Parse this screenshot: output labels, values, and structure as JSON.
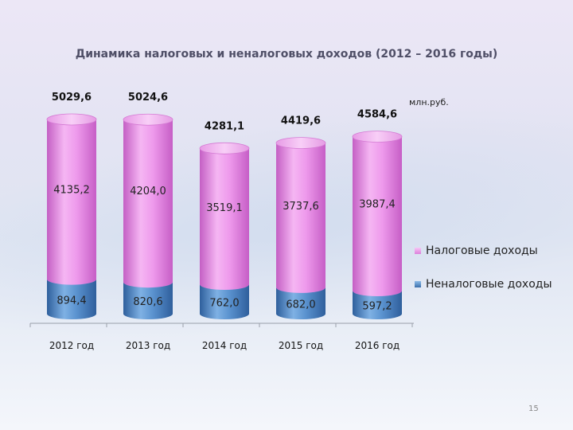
{
  "title": "Динамика налоговых и неналоговых  доходов  (2012 – 2016 годы)",
  "unit": "млн.руб.",
  "page_number": "15",
  "colors": {
    "tax": "#ea8ee8",
    "nontax": "#4f86c6"
  },
  "chart_data": {
    "type": "bar",
    "stacked": true,
    "categories": [
      "2012 год",
      "2013 год",
      "2014 год",
      "2015 год",
      "2016 год"
    ],
    "series": [
      {
        "name": "Неналоговые доходы",
        "values": [
          894.4,
          820.6,
          762.0,
          682.0,
          597.2
        ],
        "labels": [
          "894,4",
          "820,6",
          "762,0",
          "682,0",
          "597,2"
        ]
      },
      {
        "name": "Налоговые доходы",
        "values": [
          4135.2,
          4204.0,
          3519.1,
          3737.6,
          3987.4
        ],
        "labels": [
          "4135,2",
          "4204,0",
          "3519,1",
          "3737,6",
          "3987,4"
        ]
      }
    ],
    "totals": [
      5029.6,
      5024.6,
      4281.1,
      4419.6,
      4584.6
    ],
    "total_labels": [
      "5029,6",
      "5024,6",
      "4281,1",
      "4419,6",
      "4584,6"
    ],
    "legend_order": [
      "Налоговые доходы",
      "Неналоговые доходы"
    ],
    "legend_position": "right",
    "ylabel": "",
    "ylim": [
      0,
      5029.6
    ]
  }
}
